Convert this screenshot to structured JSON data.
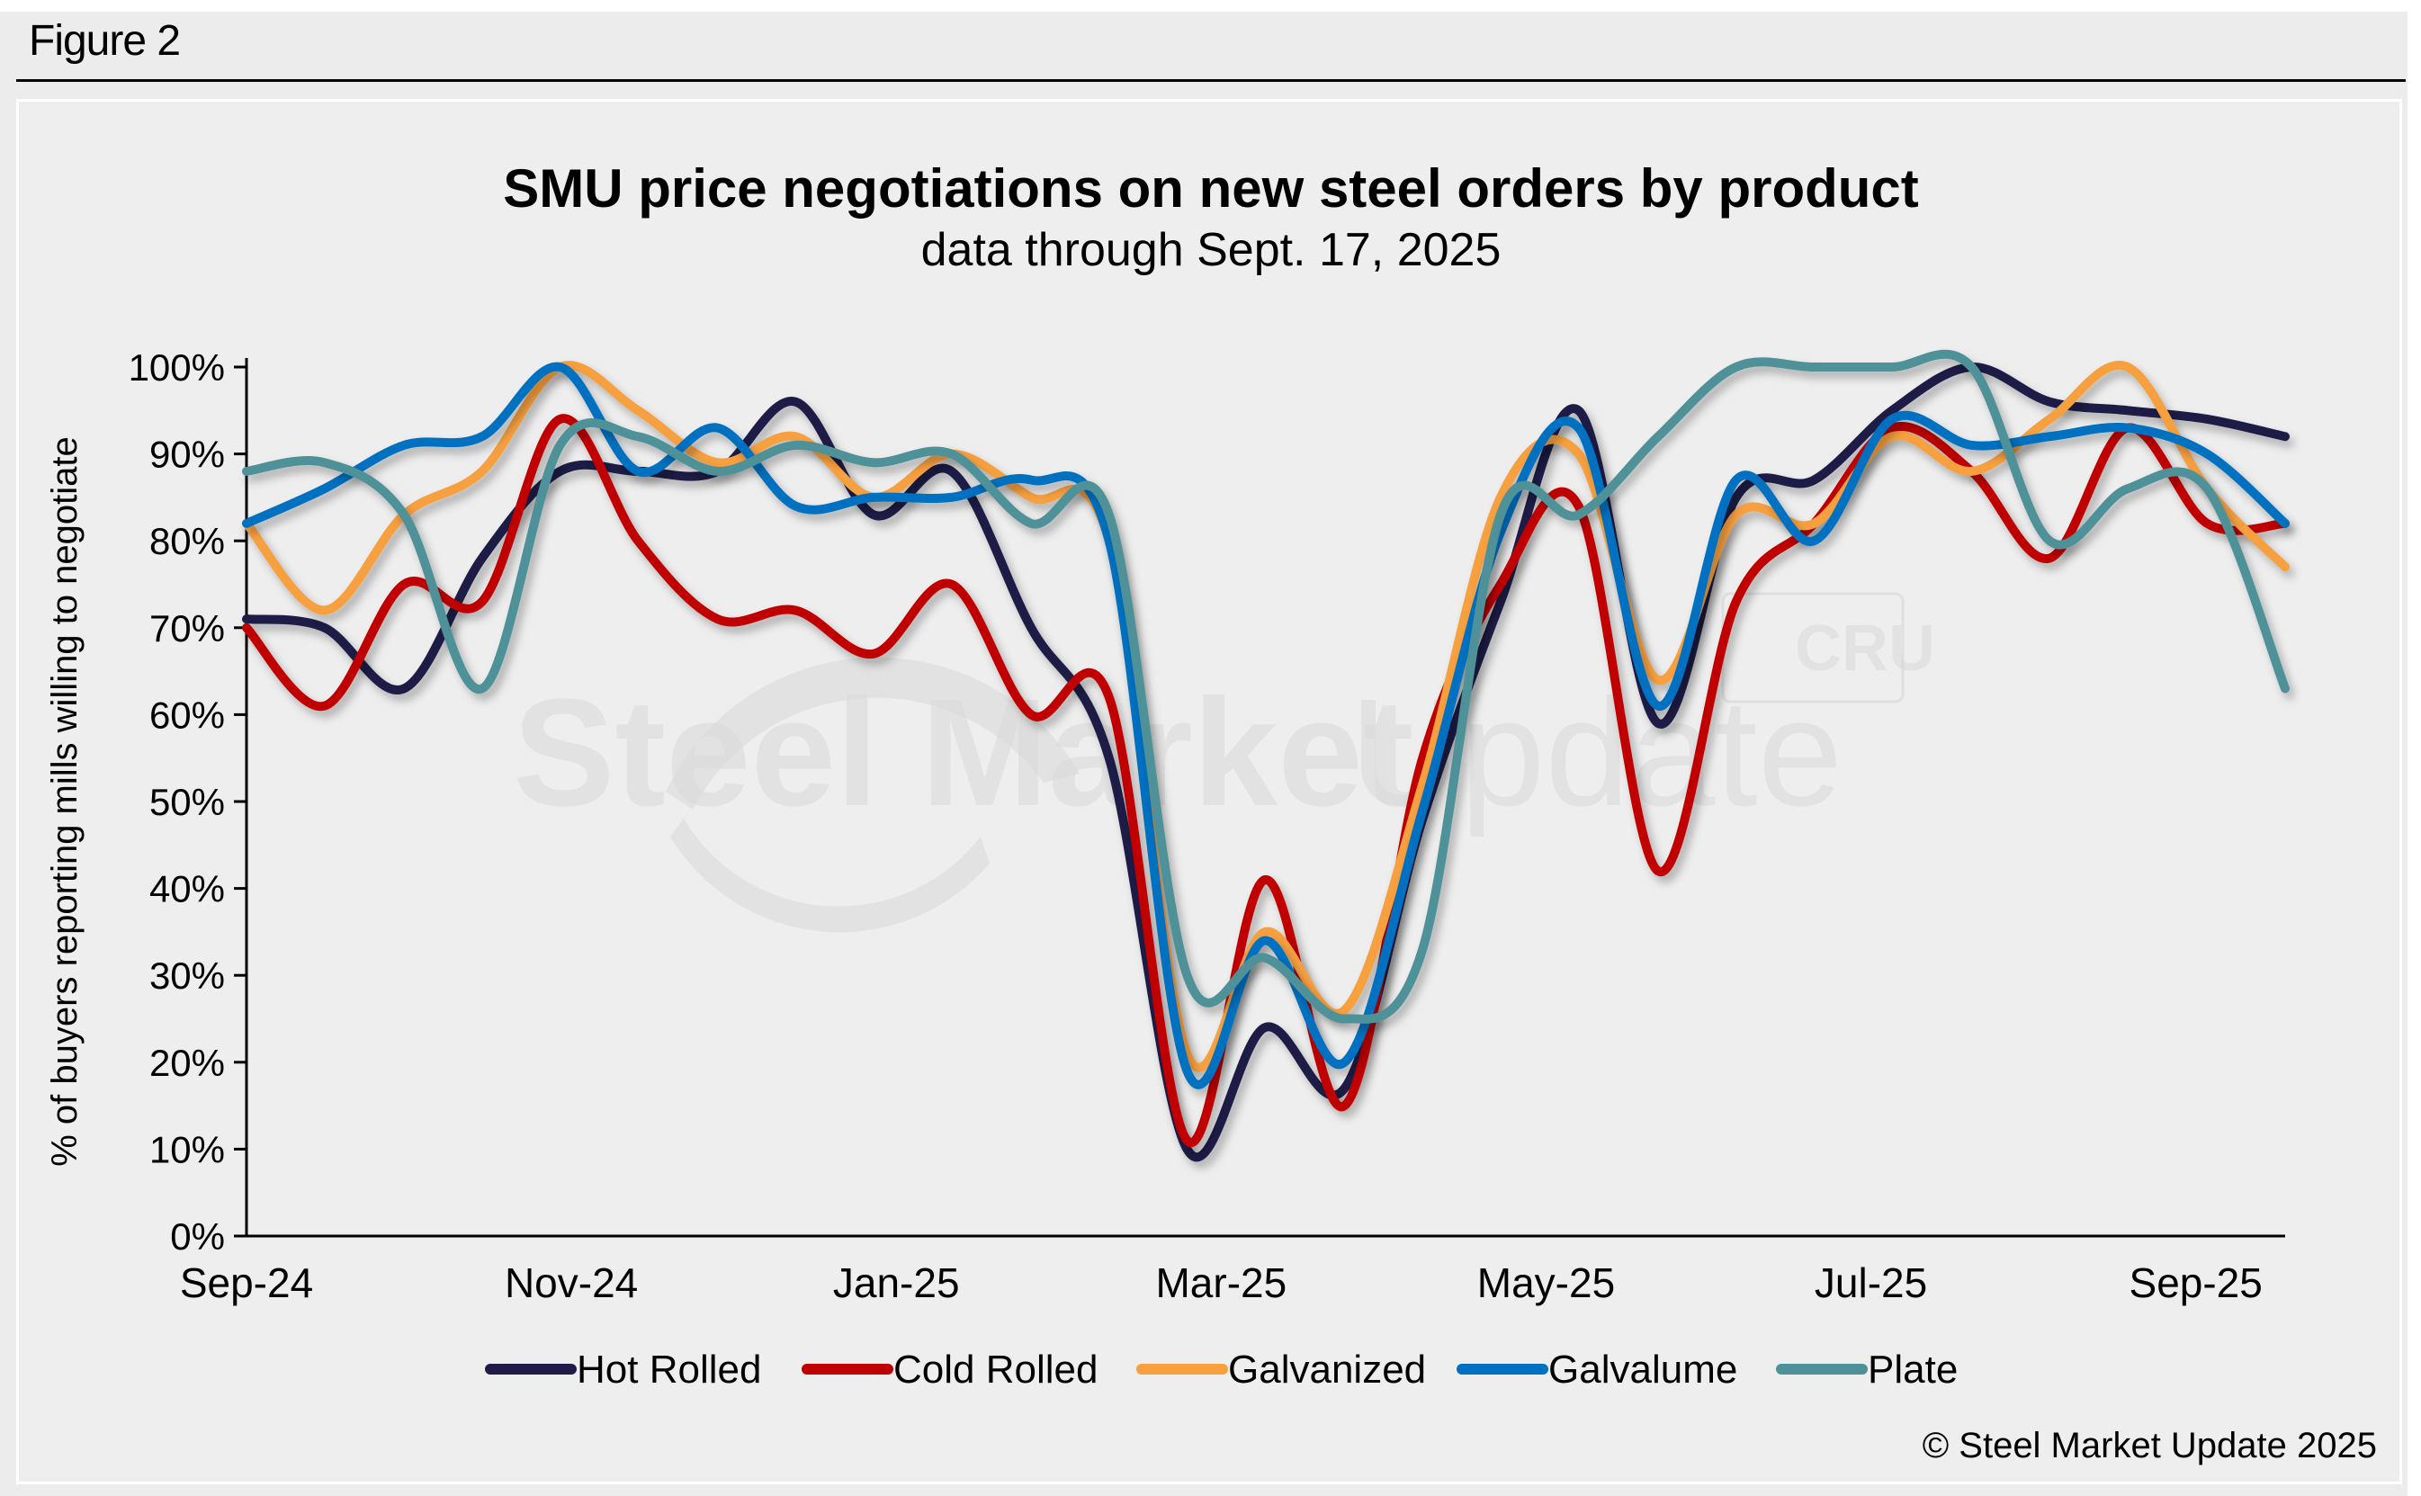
{
  "figure_label": "Figure 2",
  "copyright": "© Steel Market Update 2025",
  "watermark": {
    "bold": "Steel Market",
    "light": "Update",
    "badge": "CRU"
  },
  "chart_data": {
    "type": "line",
    "title": "SMU price negotiations on new steel orders by product",
    "subtitle": "data through Sept. 17, 2025",
    "xlabel": "",
    "ylabel": "% of buyers reporting mills willing to negotiate",
    "ylim": [
      0,
      100
    ],
    "yticks": [
      0,
      10,
      20,
      30,
      40,
      50,
      60,
      70,
      80,
      90,
      100
    ],
    "ytick_labels": [
      "0%",
      "10%",
      "20%",
      "30%",
      "40%",
      "50%",
      "60%",
      "70%",
      "80%",
      "90%",
      "100%"
    ],
    "xtick_labels": [
      "Sep-24",
      "Nov-24",
      "Jan-25",
      "Mar-25",
      "May-25",
      "Jul-25",
      "Sep-25"
    ],
    "xtick_positions_months": [
      0,
      2,
      4,
      6,
      8,
      10,
      12
    ],
    "x_range_months": [
      0,
      12.55
    ],
    "x_months": [
      0,
      0.48,
      0.97,
      1.45,
      1.93,
      2.41,
      2.9,
      3.38,
      3.86,
      4.34,
      4.83,
      5.31,
      5.79,
      6.27,
      6.76,
      7.24,
      7.72,
      8.2,
      8.69,
      9.17,
      9.65,
      10.13,
      10.62,
      11.1,
      11.58,
      12.07,
      12.55
    ],
    "grid": false,
    "legend_position": "bottom",
    "series": [
      {
        "name": "Hot Rolled",
        "color": "#1f1a47",
        "values": [
          71,
          70,
          63,
          78,
          88,
          88,
          88,
          96,
          83,
          88,
          70,
          55,
          10,
          24,
          17,
          48,
          73,
          95,
          59,
          85,
          87,
          95,
          100,
          96,
          95,
          94,
          92
        ]
      },
      {
        "name": "Cold Rolled",
        "color": "#c00000",
        "values": [
          70,
          61,
          75,
          73,
          94,
          80,
          71,
          72,
          67,
          75,
          60,
          62,
          11,
          41,
          15,
          55,
          75,
          84,
          42,
          73,
          82,
          93,
          88,
          78,
          93,
          82,
          82
        ]
      },
      {
        "name": "Galvanized",
        "color": "#f7a040",
        "values": [
          82,
          72,
          83,
          88,
          100,
          95,
          89,
          92,
          85,
          90,
          85,
          80,
          21,
          35,
          26,
          52,
          85,
          90,
          64,
          83,
          82,
          92,
          88,
          94,
          100,
          86,
          77
        ]
      },
      {
        "name": "Galvalume",
        "color": "#0070c0",
        "values": [
          82,
          86,
          91,
          92,
          100,
          88,
          93,
          84,
          85,
          85,
          87,
          80,
          19,
          34,
          20,
          49,
          81,
          93,
          61,
          87,
          80,
          94,
          91,
          92,
          93,
          90,
          82
        ]
      },
      {
        "name": "Plate",
        "color": "#4f9198",
        "values": [
          88,
          89,
          83,
          63,
          91,
          92,
          88,
          91,
          89,
          90,
          82,
          83,
          30,
          32,
          25,
          33,
          83,
          83,
          92,
          100,
          100,
          100,
          100,
          80,
          86,
          86,
          63
        ]
      }
    ]
  }
}
